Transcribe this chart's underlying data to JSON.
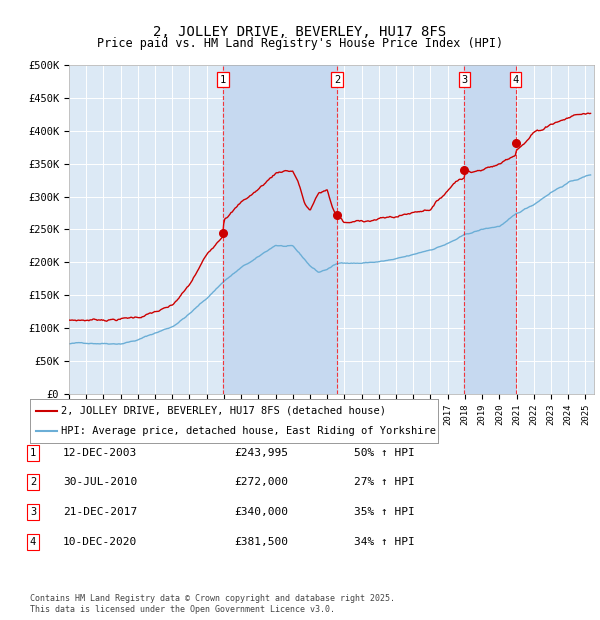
{
  "title": "2, JOLLEY DRIVE, BEVERLEY, HU17 8FS",
  "subtitle": "Price paid vs. HM Land Registry's House Price Index (HPI)",
  "title_fontsize": 10,
  "subtitle_fontsize": 8.5,
  "ylabel_ticks": [
    "£0",
    "£50K",
    "£100K",
    "£150K",
    "£200K",
    "£250K",
    "£300K",
    "£350K",
    "£400K",
    "£450K",
    "£500K"
  ],
  "ytick_vals": [
    0,
    50000,
    100000,
    150000,
    200000,
    250000,
    300000,
    350000,
    400000,
    450000,
    500000
  ],
  "ylim": [
    0,
    500000
  ],
  "xlim_start": 1995.0,
  "xlim_end": 2025.5,
  "background_color": "#ffffff",
  "plot_bg_color": "#dce9f5",
  "grid_color": "#ffffff",
  "sale_color": "#cc0000",
  "hpi_color": "#6baed6",
  "shade_color": "#c6d9f0",
  "transactions": [
    {
      "num": 1,
      "date": "12-DEC-2003",
      "price": 243995,
      "price_str": "£243,995",
      "pct": "50%",
      "x_year": 2003.95
    },
    {
      "num": 2,
      "date": "30-JUL-2010",
      "price": 272000,
      "price_str": "£272,000",
      "pct": "27%",
      "x_year": 2010.58
    },
    {
      "num": 3,
      "date": "21-DEC-2017",
      "price": 340000,
      "price_str": "£340,000",
      "pct": "35%",
      "x_year": 2017.97
    },
    {
      "num": 4,
      "date": "10-DEC-2020",
      "price": 381500,
      "price_str": "£381,500",
      "pct": "34%",
      "x_year": 2020.95
    }
  ],
  "legend_sale_label": "2, JOLLEY DRIVE, BEVERLEY, HU17 8FS (detached house)",
  "legend_hpi_label": "HPI: Average price, detached house, East Riding of Yorkshire",
  "footer_line1": "Contains HM Land Registry data © Crown copyright and database right 2025.",
  "footer_line2": "This data is licensed under the Open Government Licence v3.0."
}
